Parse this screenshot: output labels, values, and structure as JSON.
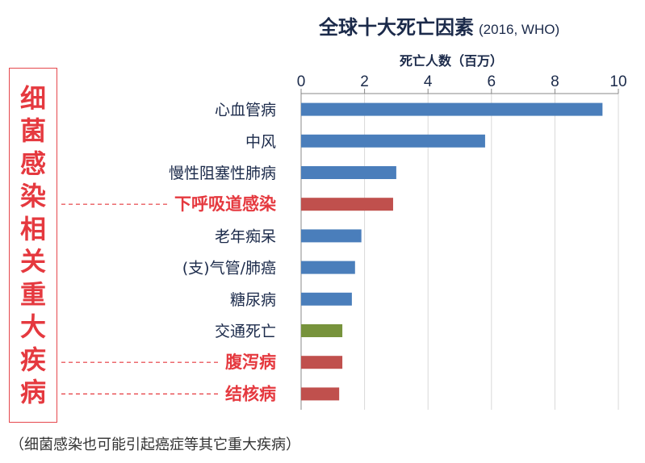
{
  "title": "全球十大死亡因素",
  "subtitle": "(2016, WHO)",
  "side_label": "细菌感染相关重大疾病",
  "footnote": "（细菌感染也可能引起癌症等其它重大疾病）",
  "colors": {
    "blue": "#4a7ebb",
    "red": "#c0504d",
    "green": "#77933c",
    "highlight_text": "#e5393f",
    "normal_text": "#1b2a4a",
    "grid": "#d9d9d9"
  },
  "chart_data": {
    "type": "bar",
    "orientation": "horizontal",
    "xlabel": "死亡人数（百万）",
    "xlim": [
      0,
      10
    ],
    "xticks": [
      0,
      2,
      4,
      6,
      8,
      10
    ],
    "x_axis_position": "top",
    "grid": true,
    "categories": [
      "心血管病",
      "中风",
      "慢性阻塞性肺病",
      "下呼吸道感染",
      "老年痴呆",
      "(支)气管/肺癌",
      "糖尿病",
      "交通死亡",
      "腹泻病",
      "结核病"
    ],
    "values": [
      9.5,
      5.8,
      3.0,
      2.9,
      1.9,
      1.7,
      1.6,
      1.3,
      1.3,
      1.2
    ],
    "bar_colors": [
      "blue",
      "blue",
      "blue",
      "red",
      "blue",
      "blue",
      "blue",
      "green",
      "red",
      "red"
    ],
    "highlighted": [
      false,
      false,
      false,
      true,
      false,
      false,
      false,
      false,
      true,
      true
    ]
  }
}
